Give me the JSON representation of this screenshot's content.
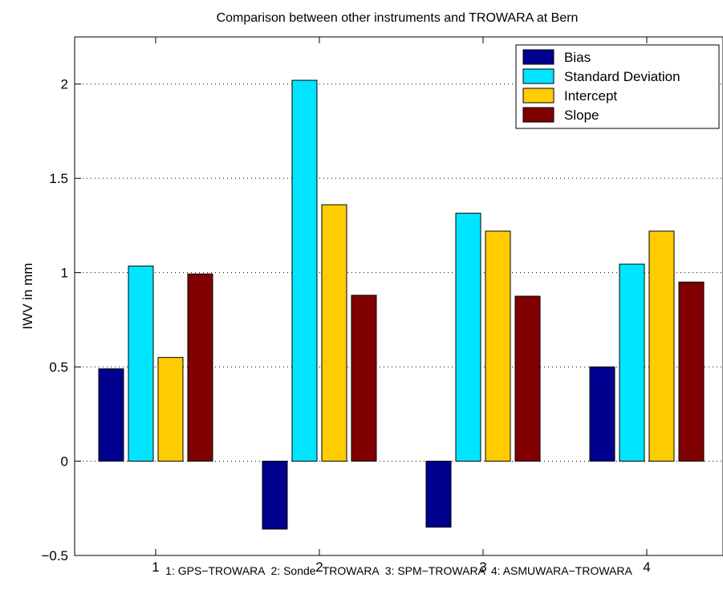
{
  "chart_data": {
    "type": "bar",
    "title": "Comparison between other instruments and TROWARA at Bern",
    "xlabel": "1: GPS−TROWARA  2: Sonde−TROWARA  3: SPM−TROWARA  4: ASMUWARA−TROWARA",
    "ylabel": "IWV in mm",
    "categories": [
      "1",
      "2",
      "3",
      "4"
    ],
    "ylim": [
      -0.5,
      2.25
    ],
    "yticks": [
      -0.5,
      0,
      0.5,
      1,
      1.5,
      2
    ],
    "ytick_labels": [
      "−0.5",
      "0",
      "0.5",
      "1",
      "1.5",
      "2"
    ],
    "grid": "horizontal-dotted",
    "legend_position": "top-right",
    "series": [
      {
        "name": "Bias",
        "color": "#00008F",
        "values": [
          0.49,
          -0.36,
          -0.35,
          0.5
        ]
      },
      {
        "name": "Standard Deviation",
        "color": "#00E5FF",
        "values": [
          1.035,
          2.02,
          1.315,
          1.045
        ]
      },
      {
        "name": "Intercept",
        "color": "#FFCC00",
        "values": [
          0.55,
          1.36,
          1.22,
          1.22
        ]
      },
      {
        "name": "Slope",
        "color": "#800000",
        "values": [
          0.993,
          0.88,
          0.875,
          0.95
        ]
      }
    ]
  }
}
